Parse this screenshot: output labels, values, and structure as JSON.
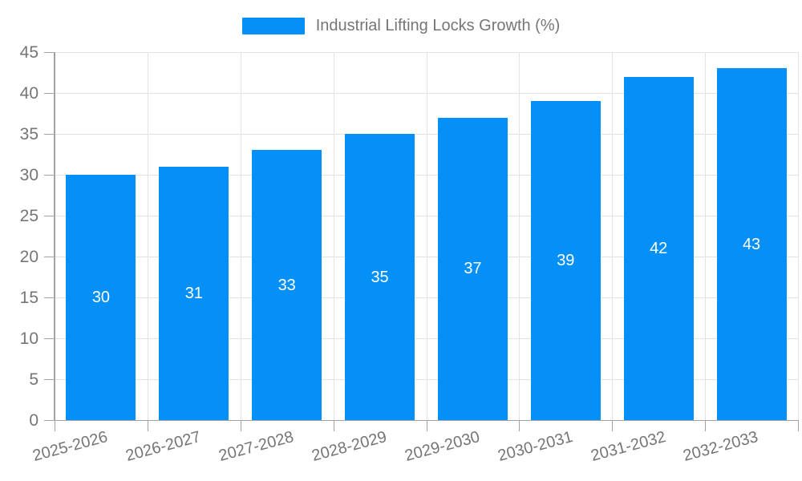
{
  "legend": {
    "label": "Industrial Lifting Locks Growth (%)"
  },
  "colors": {
    "bar": "#0590f8",
    "text": "#757575",
    "grid": "#e3e3e3",
    "axis": "#a2a2a2",
    "value_label": "#ffffff"
  },
  "chart_data": {
    "type": "bar",
    "title": "Industrial Lifting Locks Growth (%)",
    "categories": [
      "2025-2026",
      "2026-2027",
      "2027-2028",
      "2028-2029",
      "2029-2030",
      "2030-2031",
      "2031-2032",
      "2032-2033"
    ],
    "values": [
      30,
      31,
      33,
      35,
      37,
      39,
      42,
      43
    ],
    "series": [
      {
        "name": "Industrial Lifting Locks Growth (%)",
        "values": [
          30,
          31,
          33,
          35,
          37,
          39,
          42,
          43
        ]
      }
    ],
    "xlabel": "",
    "ylabel": "",
    "ylim": [
      0,
      45
    ],
    "ytick_step": 5,
    "ytick_labels": [
      "0",
      "5",
      "10",
      "15",
      "20",
      "25",
      "30",
      "35",
      "40",
      "45"
    ],
    "grid": true,
    "legend_position": "top-center",
    "value_labels_shown": true,
    "xlabel_rotation_deg": -15
  }
}
